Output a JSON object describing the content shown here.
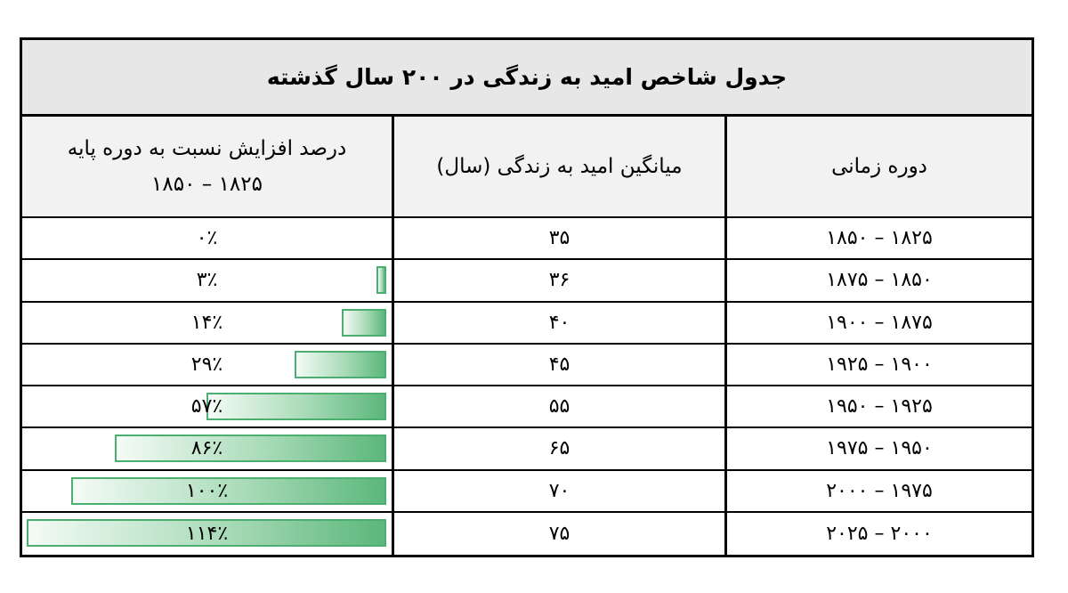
{
  "title": "جدول شاخص امید به زندگی در ۲۰۰ سال گذشته",
  "headers": {
    "period": "دوره زمانی",
    "life_expectancy": "میانگین امید به زندگی (سال)",
    "increase_line1": "درصد افزایش نسبت به دوره پایه",
    "increase_line2": "۱۸۲۵ – ۱۸۵۰"
  },
  "rows": [
    {
      "period": "۱۸۲۵ – ۱۸۵۰",
      "life": "۳۵",
      "pct": "۰٪",
      "pct_value": 0
    },
    {
      "period": "۱۸۵۰ – ۱۸۷۵",
      "life": "۳۶",
      "pct": "۳٪",
      "pct_value": 3
    },
    {
      "period": "۱۸۷۵ – ۱۹۰۰",
      "life": "۴۰",
      "pct": "۱۴٪",
      "pct_value": 14
    },
    {
      "period": "۱۹۰۰ – ۱۹۲۵",
      "life": "۴۵",
      "pct": "۲۹٪",
      "pct_value": 29
    },
    {
      "period": "۱۹۲۵ – ۱۹۵۰",
      "life": "۵۵",
      "pct": "۵۷٪",
      "pct_value": 57
    },
    {
      "period": "۱۹۵۰ – ۱۹۷۵",
      "life": "۶۵",
      "pct": "۸۶٪",
      "pct_value": 86
    },
    {
      "period": "۱۹۷۵ – ۲۰۰۰",
      "life": "۷۰",
      "pct": "۱۰۰٪",
      "pct_value": 100
    },
    {
      "period": "۲۰۰۰ – ۲۰۲۵",
      "life": "۷۵",
      "pct": "۱۱۴٪",
      "pct_value": 114
    }
  ],
  "colors": {
    "bar_border": "#4caf70",
    "bar_fill": "#5cb77c",
    "title_bg": "#e7e7e7",
    "header_bg": "#f2f2f2"
  }
}
